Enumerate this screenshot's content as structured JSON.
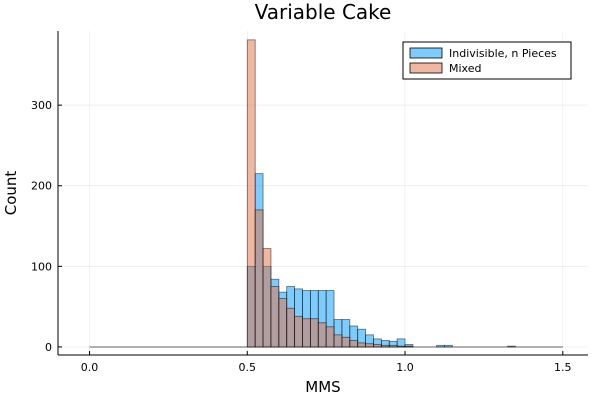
{
  "chart_data": {
    "type": "bar",
    "title": "Variable Cake",
    "xlabel": "MMS",
    "ylabel": "Count",
    "xlim": [
      -0.1,
      1.58
    ],
    "ylim": [
      -10,
      392
    ],
    "bin_width": 0.025,
    "x_ticks": [
      0.0,
      0.5,
      1.0,
      1.5
    ],
    "x_tick_labels": [
      "0.0",
      "0.5",
      "1.0",
      "1.5"
    ],
    "y_ticks": [
      0,
      100,
      200,
      300
    ],
    "y_tick_labels": [
      "0",
      "100",
      "200",
      "300"
    ],
    "grid": true,
    "legend_position": "top-right",
    "series": [
      {
        "name": "Indivisible, n Pieces",
        "color": "#009AFA",
        "bins": [
          [
            0.5,
            100
          ],
          [
            0.525,
            215
          ],
          [
            0.55,
            100
          ],
          [
            0.575,
            84
          ],
          [
            0.6,
            68
          ],
          [
            0.625,
            75
          ],
          [
            0.65,
            72
          ],
          [
            0.675,
            70
          ],
          [
            0.7,
            70
          ],
          [
            0.725,
            70
          ],
          [
            0.75,
            70
          ],
          [
            0.775,
            34
          ],
          [
            0.8,
            34
          ],
          [
            0.825,
            26
          ],
          [
            0.85,
            22
          ],
          [
            0.875,
            15
          ],
          [
            0.9,
            10
          ],
          [
            0.925,
            8
          ],
          [
            0.95,
            7
          ],
          [
            0.975,
            10
          ],
          [
            1.0,
            3
          ],
          [
            1.1,
            2
          ],
          [
            1.125,
            2
          ],
          [
            1.325,
            1
          ]
        ]
      },
      {
        "name": "Mixed",
        "color": "#E26F46",
        "bins": [
          [
            0.475,
            0
          ],
          [
            0.5,
            381
          ],
          [
            0.525,
            170
          ],
          [
            0.55,
            122
          ],
          [
            0.575,
            75
          ],
          [
            0.6,
            60
          ],
          [
            0.625,
            48
          ],
          [
            0.65,
            38
          ],
          [
            0.675,
            35
          ],
          [
            0.7,
            35
          ],
          [
            0.725,
            30
          ],
          [
            0.75,
            25
          ],
          [
            0.775,
            15
          ],
          [
            0.8,
            12
          ],
          [
            0.825,
            8
          ],
          [
            0.85,
            5
          ],
          [
            0.875,
            4
          ],
          [
            0.9,
            3
          ],
          [
            0.925,
            2
          ],
          [
            0.95,
            2
          ],
          [
            0.975,
            1
          ],
          [
            1.0,
            1
          ]
        ]
      }
    ],
    "legend_entries": [
      {
        "label": "Indivisible, n Pieces",
        "color": "#009AFA"
      },
      {
        "label": "Mixed",
        "color": "#E26F46"
      }
    ]
  }
}
